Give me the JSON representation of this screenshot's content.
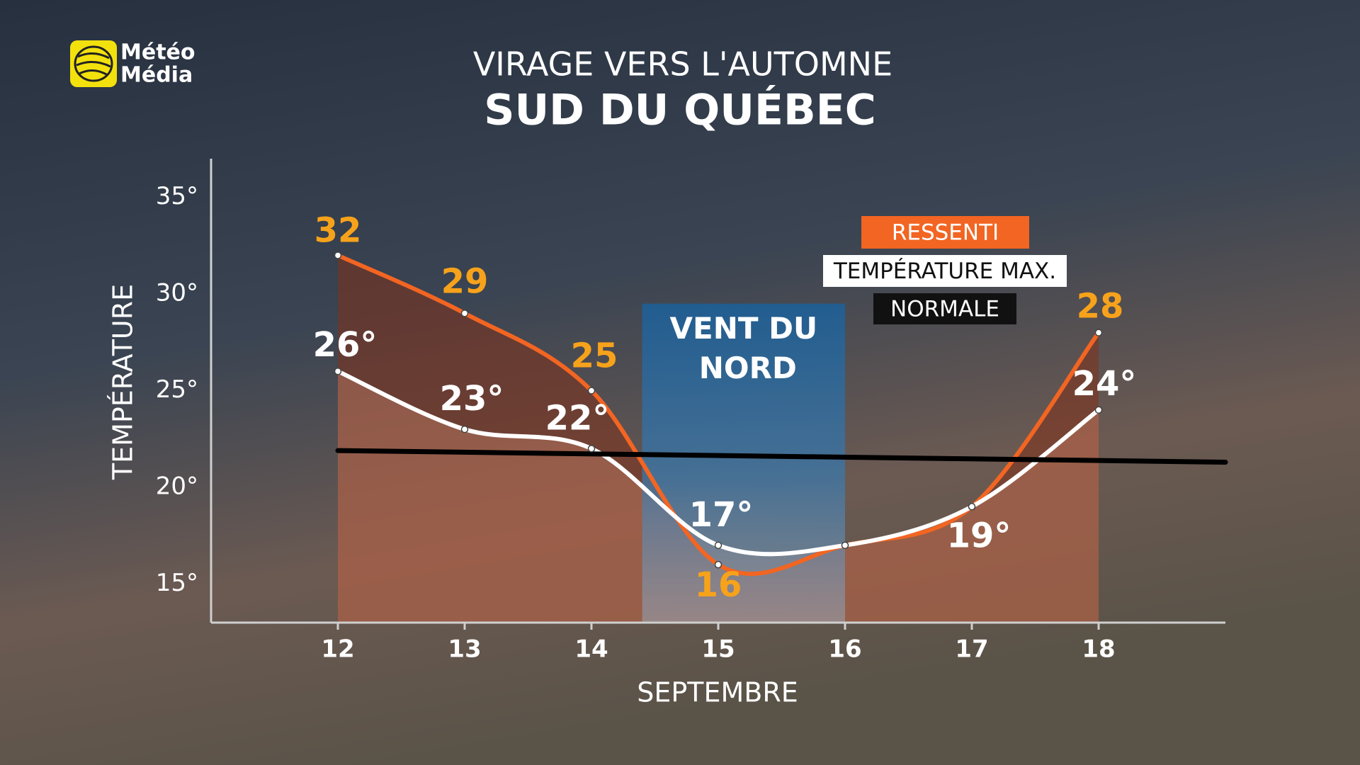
{
  "logo": [
    "Météo",
    "Média"
  ],
  "chart_data": {
    "type": "line",
    "title": "VIRAGE VERS L'AUTOMNE",
    "subtitle": "SUD DU QUÉBEC",
    "x_label": "SEPTEMBRE",
    "y_label": "TEMPÉRATURE",
    "x": [
      12,
      13,
      14,
      15,
      16,
      17,
      18
    ],
    "xlim": [
      11,
      19
    ],
    "xticks": [
      12,
      13,
      14,
      15,
      16,
      17,
      18
    ],
    "ylim": [
      13,
      37
    ],
    "yticks": [
      {
        "value": 15,
        "label": "15°"
      },
      {
        "value": 20,
        "label": "20°"
      },
      {
        "value": 25,
        "label": "25°"
      },
      {
        "value": 30,
        "label": "30°"
      },
      {
        "value": 35,
        "label": "35°"
      }
    ],
    "series": [
      {
        "name": "RESSENTI",
        "color": "#f26522",
        "label_color": "#f7a21b",
        "fill": "rgba(130,50,25,0.55)",
        "values": [
          32,
          29,
          25,
          16,
          17,
          19,
          28
        ],
        "value_labels": [
          "32",
          "29",
          "25",
          "16",
          null,
          null,
          "28"
        ]
      },
      {
        "name": "TEMPÉRATURE MAX.",
        "color": "#ffffff",
        "label_color": "#ffffff",
        "fill": "rgba(235,160,130,0.3)",
        "values": [
          26,
          23,
          22,
          17,
          17,
          19,
          24
        ],
        "value_labels": [
          "26°",
          "23°",
          "22°",
          "17°",
          null,
          "19°",
          "24°"
        ]
      },
      {
        "name": "NORMALE",
        "color": "#000000",
        "x": [
          12,
          19
        ],
        "values": [
          21.9,
          21.3
        ]
      }
    ],
    "annotation": {
      "lines": [
        "VENT DU",
        "NORD"
      ],
      "x0": 14.4,
      "x1": 16,
      "y1": 29.5
    }
  }
}
